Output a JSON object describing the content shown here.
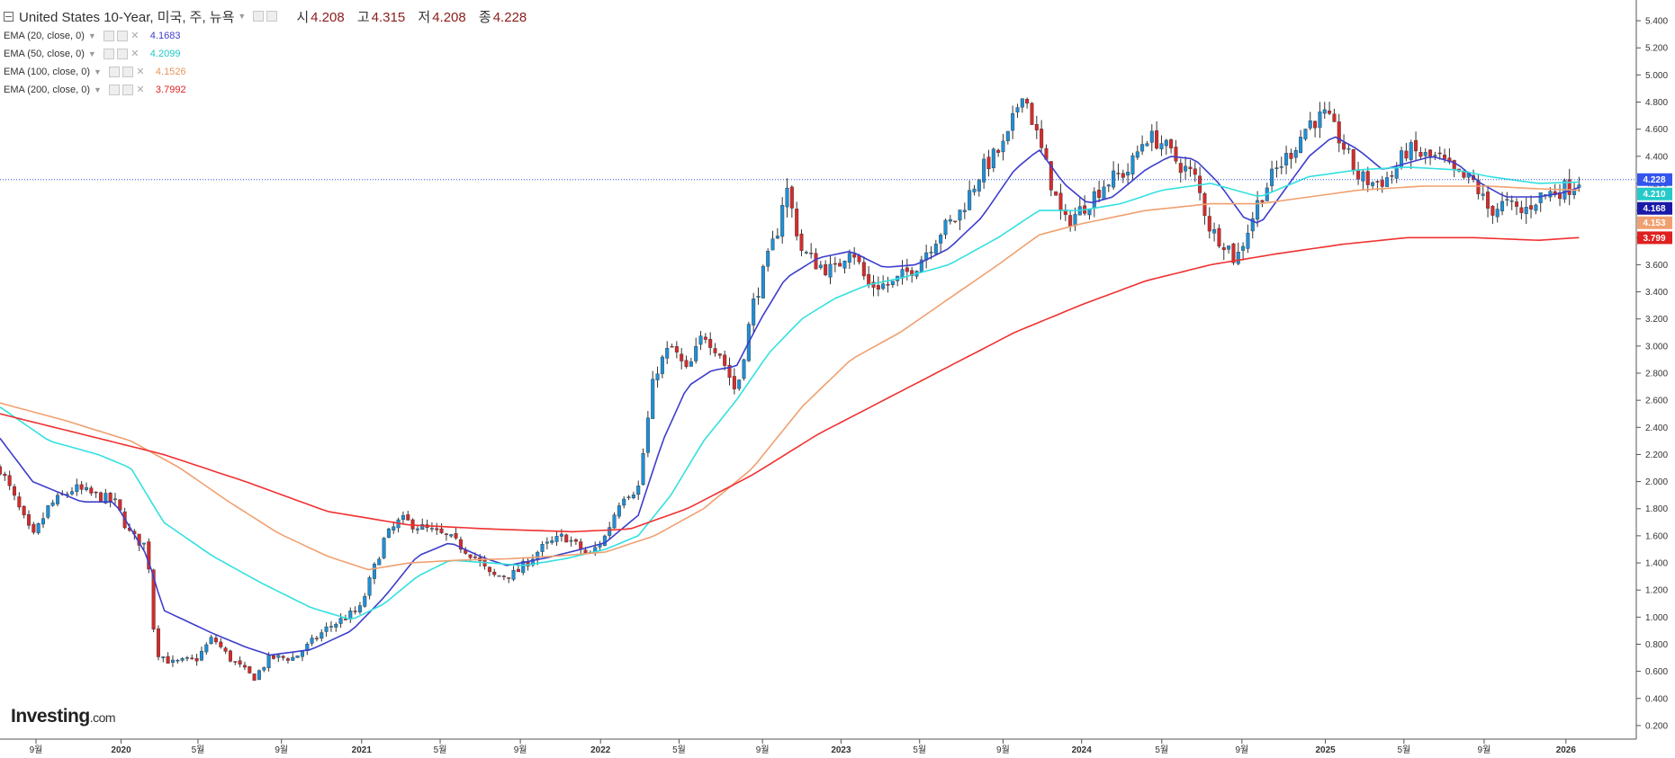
{
  "header": {
    "symbol_title": "United States 10-Year, 미국, 주, 뉴욕",
    "ohlc": [
      {
        "key": "시",
        "value": "4.208"
      },
      {
        "key": "고",
        "value": "4.315"
      },
      {
        "key": "저",
        "value": "4.208"
      },
      {
        "key": "종",
        "value": "4.228"
      }
    ]
  },
  "indicators": [
    {
      "label": "EMA (20, close, 0)",
      "value": "4.1683",
      "color": "#3d3dcc"
    },
    {
      "label": "EMA (50, close, 0)",
      "value": "4.2099",
      "color": "#33e0e0"
    },
    {
      "label": "EMA (100, close, 0)",
      "value": "4.1526",
      "color": "#f0a070"
    },
    {
      "label": "EMA (200, close, 0)",
      "value": "3.7992",
      "color": "#f03030"
    }
  ],
  "logo": {
    "brand": "Investing",
    "suffix": ".com"
  },
  "colors": {
    "up": "#1f8fd6",
    "down": "#d62b2b",
    "price_line": "#3355ee"
  },
  "chart_data": {
    "type": "candlestick",
    "ylim": [
      0.1,
      5.5
    ],
    "y_ticks": [
      "5.400",
      "5.200",
      "5.000",
      "4.800",
      "4.600",
      "4.400",
      "4.200",
      "4.000",
      "3.800",
      "3.600",
      "3.400",
      "3.200",
      "3.000",
      "2.800",
      "2.600",
      "2.400",
      "2.200",
      "2.000",
      "1.800",
      "1.600",
      "1.400",
      "1.200",
      "1.000",
      "0.800",
      "0.600",
      "0.400",
      "0.200"
    ],
    "x_ticks": [
      {
        "label": "9월",
        "t": 0.022,
        "bold": false
      },
      {
        "label": "2020",
        "t": 0.074,
        "bold": true
      },
      {
        "label": "5월",
        "t": 0.121,
        "bold": false
      },
      {
        "label": "9월",
        "t": 0.172,
        "bold": false
      },
      {
        "label": "2021",
        "t": 0.221,
        "bold": true
      },
      {
        "label": "5월",
        "t": 0.269,
        "bold": false
      },
      {
        "label": "9월",
        "t": 0.318,
        "bold": false
      },
      {
        "label": "2022",
        "t": 0.367,
        "bold": true
      },
      {
        "label": "5월",
        "t": 0.415,
        "bold": false
      },
      {
        "label": "9월",
        "t": 0.466,
        "bold": false
      },
      {
        "label": "2023",
        "t": 0.514,
        "bold": true
      },
      {
        "label": "5월",
        "t": 0.562,
        "bold": false
      },
      {
        "label": "9월",
        "t": 0.613,
        "bold": false
      },
      {
        "label": "2024",
        "t": 0.661,
        "bold": true
      },
      {
        "label": "5월",
        "t": 0.71,
        "bold": false
      },
      {
        "label": "9월",
        "t": 0.759,
        "bold": false
      },
      {
        "label": "2025",
        "t": 0.81,
        "bold": true
      },
      {
        "label": "5월",
        "t": 0.858,
        "bold": false
      },
      {
        "label": "9월",
        "t": 0.907,
        "bold": false
      },
      {
        "label": "2026",
        "t": 0.957,
        "bold": true
      }
    ],
    "close_anchors": [
      [
        0,
        2.1
      ],
      [
        0.02,
        1.58
      ],
      [
        0.03,
        1.82
      ],
      [
        0.045,
        1.95
      ],
      [
        0.07,
        1.85
      ],
      [
        0.08,
        1.6
      ],
      [
        0.09,
        1.52
      ],
      [
        0.095,
        0.75
      ],
      [
        0.105,
        0.66
      ],
      [
        0.12,
        0.69
      ],
      [
        0.13,
        0.85
      ],
      [
        0.14,
        0.7
      ],
      [
        0.155,
        0.55
      ],
      [
        0.165,
        0.7
      ],
      [
        0.18,
        0.7
      ],
      [
        0.2,
        0.92
      ],
      [
        0.22,
        1.06
      ],
      [
        0.235,
        1.58
      ],
      [
        0.245,
        1.72
      ],
      [
        0.26,
        1.65
      ],
      [
        0.275,
        1.58
      ],
      [
        0.29,
        1.45
      ],
      [
        0.3,
        1.3
      ],
      [
        0.315,
        1.32
      ],
      [
        0.33,
        1.5
      ],
      [
        0.345,
        1.6
      ],
      [
        0.36,
        1.45
      ],
      [
        0.37,
        1.6
      ],
      [
        0.38,
        1.9
      ],
      [
        0.39,
        1.95
      ],
      [
        0.4,
        2.8
      ],
      [
        0.41,
        3.0
      ],
      [
        0.42,
        2.8
      ],
      [
        0.43,
        3.1
      ],
      [
        0.44,
        2.95
      ],
      [
        0.45,
        2.65
      ],
      [
        0.46,
        3.3
      ],
      [
        0.475,
        3.85
      ],
      [
        0.48,
        4.2
      ],
      [
        0.49,
        3.7
      ],
      [
        0.5,
        3.6
      ],
      [
        0.51,
        3.55
      ],
      [
        0.52,
        3.75
      ],
      [
        0.53,
        3.45
      ],
      [
        0.545,
        3.45
      ],
      [
        0.56,
        3.6
      ],
      [
        0.575,
        3.85
      ],
      [
        0.585,
        3.95
      ],
      [
        0.6,
        4.3
      ],
      [
        0.615,
        4.5
      ],
      [
        0.625,
        4.9
      ],
      [
        0.635,
        4.5
      ],
      [
        0.65,
        3.9
      ],
      [
        0.66,
        4.0
      ],
      [
        0.675,
        4.2
      ],
      [
        0.69,
        4.3
      ],
      [
        0.7,
        4.55
      ],
      [
        0.71,
        4.5
      ],
      [
        0.72,
        4.35
      ],
      [
        0.73,
        4.25
      ],
      [
        0.74,
        3.85
      ],
      [
        0.75,
        3.75
      ],
      [
        0.755,
        3.62
      ],
      [
        0.77,
        4.1
      ],
      [
        0.78,
        4.3
      ],
      [
        0.79,
        4.45
      ],
      [
        0.8,
        4.65
      ],
      [
        0.81,
        4.7
      ],
      [
        0.82,
        4.5
      ],
      [
        0.83,
        4.25
      ],
      [
        0.84,
        4.2
      ],
      [
        0.85,
        4.25
      ],
      [
        0.86,
        4.45
      ],
      [
        0.87,
        4.4
      ],
      [
        0.88,
        4.38
      ],
      [
        0.89,
        4.25
      ],
      [
        0.9,
        4.22
      ],
      [
        0.91,
        4.0
      ],
      [
        0.92,
        4.05
      ],
      [
        0.93,
        3.98
      ],
      [
        0.94,
        4.1
      ],
      [
        0.95,
        4.14
      ],
      [
        0.96,
        4.18
      ],
      [
        0.965,
        4.228
      ]
    ],
    "series": [
      {
        "name": "EMA (20, close, 0)",
        "color": "#3d3dcc",
        "points": [
          [
            0,
            2.32
          ],
          [
            0.02,
            2.0
          ],
          [
            0.05,
            1.85
          ],
          [
            0.07,
            1.85
          ],
          [
            0.09,
            1.45
          ],
          [
            0.1,
            1.05
          ],
          [
            0.13,
            0.88
          ],
          [
            0.15,
            0.78
          ],
          [
            0.165,
            0.72
          ],
          [
            0.19,
            0.76
          ],
          [
            0.215,
            0.9
          ],
          [
            0.235,
            1.15
          ],
          [
            0.255,
            1.45
          ],
          [
            0.275,
            1.55
          ],
          [
            0.295,
            1.44
          ],
          [
            0.31,
            1.38
          ],
          [
            0.335,
            1.44
          ],
          [
            0.355,
            1.5
          ],
          [
            0.37,
            1.55
          ],
          [
            0.39,
            1.75
          ],
          [
            0.405,
            2.3
          ],
          [
            0.42,
            2.7
          ],
          [
            0.435,
            2.82
          ],
          [
            0.45,
            2.85
          ],
          [
            0.465,
            3.2
          ],
          [
            0.48,
            3.5
          ],
          [
            0.5,
            3.65
          ],
          [
            0.52,
            3.7
          ],
          [
            0.54,
            3.58
          ],
          [
            0.56,
            3.6
          ],
          [
            0.58,
            3.72
          ],
          [
            0.6,
            3.95
          ],
          [
            0.62,
            4.3
          ],
          [
            0.635,
            4.45
          ],
          [
            0.65,
            4.2
          ],
          [
            0.665,
            4.05
          ],
          [
            0.68,
            4.1
          ],
          [
            0.7,
            4.3
          ],
          [
            0.715,
            4.4
          ],
          [
            0.73,
            4.38
          ],
          [
            0.745,
            4.2
          ],
          [
            0.76,
            3.95
          ],
          [
            0.77,
            3.9
          ],
          [
            0.785,
            4.15
          ],
          [
            0.8,
            4.4
          ],
          [
            0.815,
            4.55
          ],
          [
            0.83,
            4.45
          ],
          [
            0.845,
            4.3
          ],
          [
            0.86,
            4.35
          ],
          [
            0.875,
            4.4
          ],
          [
            0.89,
            4.35
          ],
          [
            0.905,
            4.2
          ],
          [
            0.92,
            4.1
          ],
          [
            0.94,
            4.1
          ],
          [
            0.955,
            4.13
          ],
          [
            0.965,
            4.17
          ]
        ]
      },
      {
        "name": "EMA (50, close, 0)",
        "color": "#33e0e0",
        "points": [
          [
            0,
            2.55
          ],
          [
            0.03,
            2.3
          ],
          [
            0.06,
            2.2
          ],
          [
            0.08,
            2.1
          ],
          [
            0.1,
            1.7
          ],
          [
            0.13,
            1.45
          ],
          [
            0.16,
            1.25
          ],
          [
            0.19,
            1.07
          ],
          [
            0.215,
            0.98
          ],
          [
            0.235,
            1.1
          ],
          [
            0.255,
            1.3
          ],
          [
            0.275,
            1.42
          ],
          [
            0.3,
            1.4
          ],
          [
            0.32,
            1.38
          ],
          [
            0.345,
            1.43
          ],
          [
            0.37,
            1.5
          ],
          [
            0.39,
            1.6
          ],
          [
            0.41,
            1.9
          ],
          [
            0.43,
            2.3
          ],
          [
            0.45,
            2.6
          ],
          [
            0.47,
            2.95
          ],
          [
            0.49,
            3.2
          ],
          [
            0.51,
            3.35
          ],
          [
            0.53,
            3.45
          ],
          [
            0.55,
            3.5
          ],
          [
            0.58,
            3.6
          ],
          [
            0.61,
            3.8
          ],
          [
            0.635,
            4.0
          ],
          [
            0.66,
            4.0
          ],
          [
            0.685,
            4.05
          ],
          [
            0.71,
            4.15
          ],
          [
            0.74,
            4.2
          ],
          [
            0.77,
            4.1
          ],
          [
            0.8,
            4.25
          ],
          [
            0.83,
            4.3
          ],
          [
            0.86,
            4.32
          ],
          [
            0.89,
            4.3
          ],
          [
            0.91,
            4.25
          ],
          [
            0.94,
            4.2
          ],
          [
            0.965,
            4.21
          ]
        ]
      },
      {
        "name": "EMA (100, close, 0)",
        "color": "#f0a070",
        "points": [
          [
            0,
            2.58
          ],
          [
            0.04,
            2.45
          ],
          [
            0.08,
            2.3
          ],
          [
            0.11,
            2.1
          ],
          [
            0.14,
            1.85
          ],
          [
            0.17,
            1.62
          ],
          [
            0.2,
            1.45
          ],
          [
            0.225,
            1.35
          ],
          [
            0.25,
            1.4
          ],
          [
            0.28,
            1.42
          ],
          [
            0.31,
            1.43
          ],
          [
            0.34,
            1.45
          ],
          [
            0.37,
            1.48
          ],
          [
            0.4,
            1.6
          ],
          [
            0.43,
            1.8
          ],
          [
            0.46,
            2.1
          ],
          [
            0.49,
            2.55
          ],
          [
            0.52,
            2.9
          ],
          [
            0.55,
            3.1
          ],
          [
            0.58,
            3.35
          ],
          [
            0.61,
            3.6
          ],
          [
            0.635,
            3.82
          ],
          [
            0.66,
            3.9
          ],
          [
            0.7,
            4.0
          ],
          [
            0.74,
            4.05
          ],
          [
            0.77,
            4.05
          ],
          [
            0.8,
            4.1
          ],
          [
            0.83,
            4.15
          ],
          [
            0.87,
            4.18
          ],
          [
            0.91,
            4.18
          ],
          [
            0.94,
            4.16
          ],
          [
            0.965,
            4.15
          ]
        ]
      },
      {
        "name": "EMA (200, close, 0)",
        "color": "#f03030",
        "points": [
          [
            0,
            2.5
          ],
          [
            0.05,
            2.35
          ],
          [
            0.1,
            2.2
          ],
          [
            0.15,
            2.0
          ],
          [
            0.2,
            1.78
          ],
          [
            0.25,
            1.68
          ],
          [
            0.3,
            1.65
          ],
          [
            0.35,
            1.63
          ],
          [
            0.385,
            1.65
          ],
          [
            0.42,
            1.8
          ],
          [
            0.46,
            2.05
          ],
          [
            0.5,
            2.35
          ],
          [
            0.54,
            2.6
          ],
          [
            0.58,
            2.85
          ],
          [
            0.62,
            3.1
          ],
          [
            0.66,
            3.3
          ],
          [
            0.7,
            3.48
          ],
          [
            0.74,
            3.6
          ],
          [
            0.78,
            3.68
          ],
          [
            0.82,
            3.75
          ],
          [
            0.86,
            3.8
          ],
          [
            0.9,
            3.8
          ],
          [
            0.94,
            3.78
          ],
          [
            0.965,
            3.8
          ]
        ]
      }
    ],
    "price_line": 4.228,
    "right_labels": [
      {
        "text": "4.228",
        "value": 4.228,
        "bg": "#3355ee"
      },
      {
        "text": "4.210",
        "value": 4.21,
        "bg": "#25c9c9"
      },
      {
        "text": "4.168",
        "value": 4.168,
        "bg": "#1a1aa8"
      },
      {
        "text": "4.153",
        "value": 4.153,
        "bg": "#f0a070"
      },
      {
        "text": "3.799",
        "value": 3.799,
        "bg": "#e02020"
      }
    ]
  }
}
